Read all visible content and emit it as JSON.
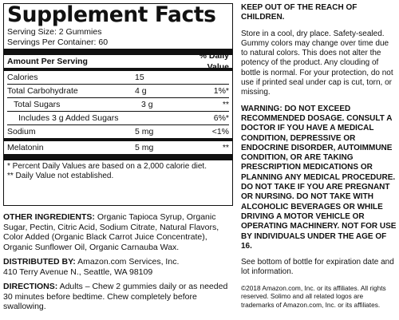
{
  "facts": {
    "title": "Supplement Facts",
    "serving_size": "Serving Size: 2 Gummies",
    "servings_per_container": "Servings Per Container: 60",
    "header_amount": "Amount Per Serving",
    "header_dv": "% Daily Value",
    "rows": [
      {
        "label": "Calories",
        "amount": "15",
        "dv": ""
      },
      {
        "label": "Total Carbohydrate",
        "amount": "4 g",
        "dv": "1%*"
      },
      {
        "label": "Total Sugars",
        "amount": "3 g",
        "dv": "**"
      },
      {
        "label": "Includes 3 g Added Sugars",
        "amount": "",
        "dv": "6%*"
      },
      {
        "label": "Sodium",
        "amount": "5 mg",
        "dv": "<1%"
      },
      {
        "label": "Melatonin",
        "amount": "5 mg",
        "dv": "**"
      }
    ],
    "footnote1": "* Percent Daily Values are based on a 2,000 calorie diet.",
    "footnote2": "** Daily Value not established."
  },
  "ingredients": {
    "label": "OTHER INGREDIENTS:",
    "text": " Organic Tapioca Syrup, Organic Sugar, Pectin, Citric Acid, Sodium Citrate, Natural Flavors, Color Added (Organic Black Carrot Juice Concentrate), Organic Sunflower Oil, Organic Carnauba Wax."
  },
  "distributor": {
    "label": "DISTRIBUTED BY:",
    "name": " Amazon.com Services, Inc.",
    "address": "410 Terry Avenue N., Seattle, WA 98109"
  },
  "directions": {
    "label": "DIRECTIONS:",
    "text": " Adults – Chew 2 gummies daily or as needed 30 minutes before bedtime. Chew completely before swallowing."
  },
  "right": {
    "keep_out": "KEEP OUT OF THE REACH OF CHILDREN.",
    "storage": "Store in a cool, dry place. Safety-sealed. Gummy colors may change over time due to natural colors. This does not alter the potency of the product. Any clouding of bottle is normal. For your protection, do not use if printed seal under cap is cut, torn, or missing.",
    "warning": "WARNING: DO NOT EXCEED RECOMMENDED DOSAGE. CONSULT A DOCTOR IF YOU HAVE A MEDICAL CONDITION, DEPRESSIVE OR ENDOCRINE DISORDER, AUTOIMMUNE CONDITION, OR ARE TAKING PRESCRIPTION MEDICATIONS OR PLANNING ANY MEDICAL PROCEDURE. DO NOT TAKE IF YOU ARE PREGNANT OR NURSING. DO NOT TAKE WITH ALCOHOLIC BEVERAGES OR WHILE DRIVING A MOTOR VEHICLE OR OPERATING MACHINERY. NOT FOR USE BY INDIVIDUALS UNDER THE AGE OF 16.",
    "expiration": "See bottom of bottle for expiration date and lot information.",
    "copyright": "©2018 Amazon.com, Inc. or its affiliates. All rights reserved. Solimo and all related logos are trademarks of Amazon.com, Inc. or its affiliates."
  }
}
